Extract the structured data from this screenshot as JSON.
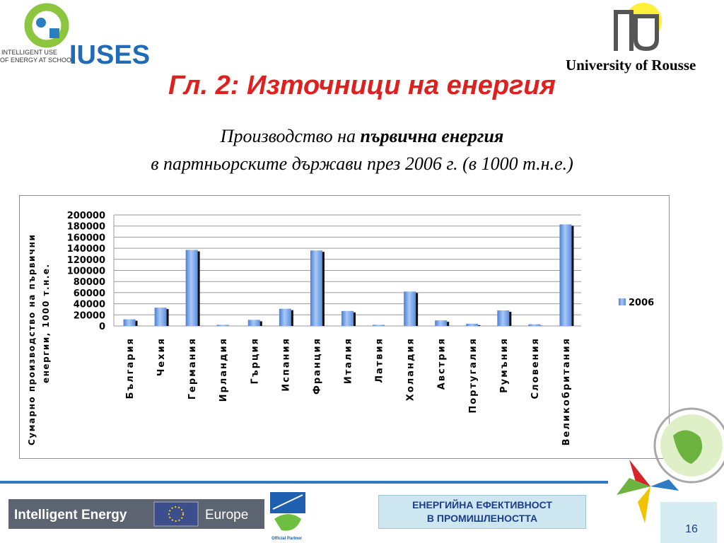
{
  "header": {
    "logo_text_line1": "INTELLIGENT USE",
    "logo_text_line2": "OF ENERGY AT SCHOOL",
    "logo_wordmark": "IUSES",
    "university": "University of Rousse"
  },
  "slide": {
    "title": "Гл. 2: Източници на енергия",
    "subtitle_line1_prefix": "Производство на ",
    "subtitle_line1_bold": "първична енергия",
    "subtitle_line2": "в партньорските държави през 2006 г. (в 1000 т.н.е.)"
  },
  "chart_data": {
    "type": "bar",
    "categories": [
      "България",
      "Чехия",
      "Германия",
      "Ирландия",
      "Гърция",
      "Испания",
      "Франция",
      "Италия",
      "Латвия",
      "Холандия",
      "Австрия",
      "Португалия",
      "Румъния",
      "Словения",
      "Великобритания"
    ],
    "series": [
      {
        "name": "2006",
        "values": [
          12000,
          33000,
          137000,
          2000,
          11000,
          31000,
          136000,
          27000,
          2000,
          62000,
          10000,
          4000,
          28000,
          3000,
          183000
        ],
        "color": "#6c9ee8"
      }
    ],
    "ylabel": "Сумарно производство на първични енергии, 1000 т.н.е.",
    "ylim": [
      0,
      200000
    ],
    "yticks": [
      "0",
      "20000",
      "40000",
      "60000",
      "80000",
      "100000",
      "120000",
      "140000",
      "160000",
      "180000",
      "200000"
    ],
    "grid": true,
    "legend": "right"
  },
  "footer": {
    "banner_left": "Intelligent Energy",
    "banner_right": "Europe",
    "partner_label": "Official Partner",
    "box_line1": "ЕНЕРГИЙНА ЕФЕКТИВНОСТ",
    "box_line2": "В ПРОМИШЛЕНОСТТА",
    "page_number": "16"
  },
  "colors": {
    "title_red": "#e0201e",
    "rule_blue": "#2e7bc4",
    "box_bg": "#cde6ef"
  }
}
